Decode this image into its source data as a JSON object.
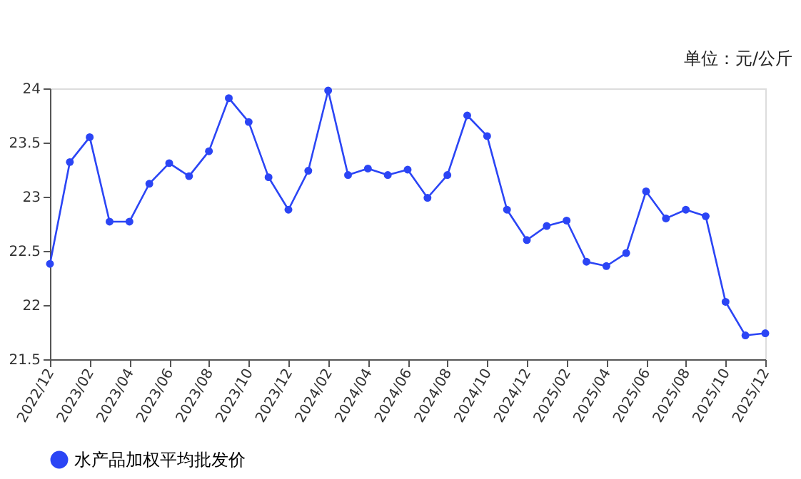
{
  "chart_data": {
    "type": "line",
    "categories": [
      "2022/12",
      null,
      "2023/02",
      null,
      "2023/04",
      null,
      "2023/06",
      null,
      "2023/08",
      null,
      "2023/10",
      null,
      "2023/12",
      null,
      "2024/02",
      null,
      "2024/04",
      null,
      "2024/06",
      null,
      "2024/08",
      null,
      "2024/10",
      null,
      "2024/12",
      null,
      "2025/02",
      null,
      "2025/04",
      null,
      "2025/06",
      null,
      "2025/08",
      null,
      "2025/10",
      null,
      "2025/12"
    ],
    "series": [
      {
        "name": "水产品加权平均批发价",
        "color": "#2b45f5",
        "values": [
          22.38,
          23.32,
          23.55,
          22.77,
          22.77,
          23.12,
          23.31,
          23.19,
          23.42,
          23.91,
          23.69,
          23.18,
          22.88,
          23.24,
          23.98,
          23.2,
          23.26,
          23.2,
          23.25,
          22.99,
          23.2,
          23.75,
          23.56,
          22.88,
          22.6,
          22.73,
          22.78,
          22.4,
          22.36,
          22.48,
          23.05,
          22.8,
          22.88,
          22.82,
          22.03,
          21.72,
          21.74
        ]
      }
    ],
    "ylim": [
      21.5,
      24
    ],
    "yticks": [
      21.5,
      22,
      22.5,
      23,
      23.5,
      24
    ],
    "annotations": [
      "单位：元/公斤"
    ],
    "grid": false,
    "legend": "bottom",
    "marker": "circle",
    "line_style": "solid"
  }
}
